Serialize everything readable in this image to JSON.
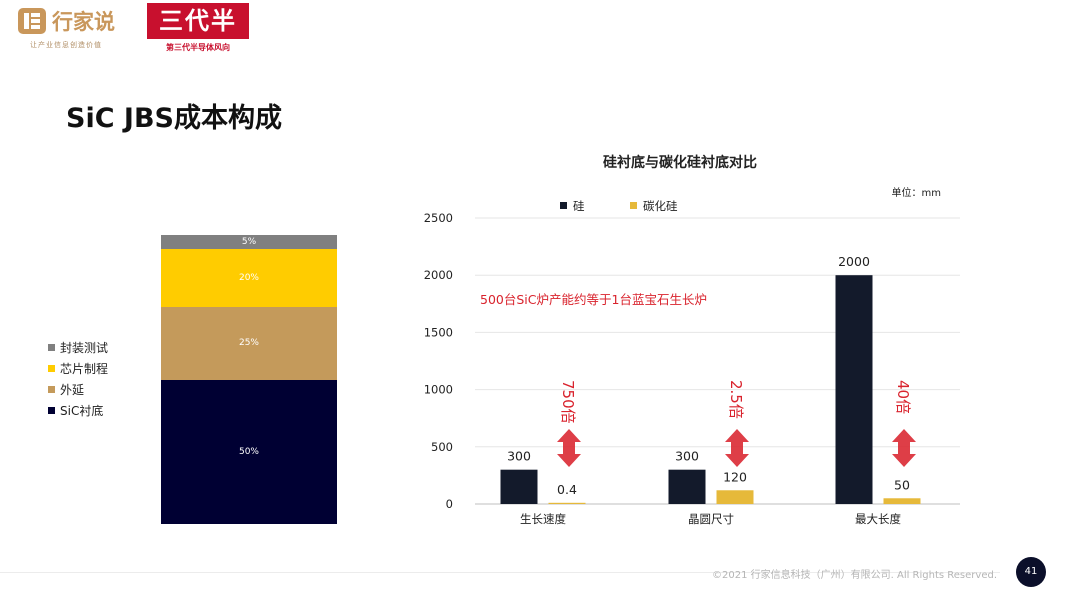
{
  "header": {
    "logo1_name": "行家说",
    "logo1_slogan": "让产业信息创造价值",
    "logo2_name": "三代半",
    "logo2_sub": "第三代半导体风向"
  },
  "title": "SiC JBS成本构成",
  "cost_breakdown": {
    "segments": [
      {
        "label": "封装测试",
        "value": 5,
        "text": "5%",
        "color": "#808080"
      },
      {
        "label": "芯片制程",
        "value": 20,
        "text": "20%",
        "color": "#ffcc00"
      },
      {
        "label": "外延",
        "value": 25,
        "text": "25%",
        "color": "#c49a5b"
      },
      {
        "label": "SiC衬底",
        "value": 50,
        "text": "50%",
        "color": "#000033"
      }
    ]
  },
  "chart_data": {
    "type": "bar",
    "title": "硅衬底与碳化硅衬底对比",
    "unit": "单位：mm",
    "categories": [
      "生长速度",
      "晶圆尺寸",
      "最大长度"
    ],
    "series": [
      {
        "name": "硅",
        "values": [
          300,
          300,
          2000
        ],
        "labels": [
          "300",
          "300",
          "2000"
        ],
        "color": "#131a2b"
      },
      {
        "name": "碳化硅",
        "values": [
          0.4,
          120,
          50
        ],
        "labels": [
          "0.4",
          "120",
          "50"
        ],
        "color": "#e6b93a"
      }
    ],
    "ylim": [
      0,
      2500
    ],
    "yticks": [
      "0",
      "500",
      "1000",
      "1500",
      "2000",
      "2500"
    ],
    "legend_position": "top",
    "grid": true,
    "annotation": "500台SiC炉产能约等于1台蓝宝石生长炉",
    "ratios": [
      "750倍",
      "2.5倍",
      "40倍"
    ]
  },
  "footer": {
    "copyright": "©2021 行家信息科技（广州）有限公司. All Rights Reserved.",
    "page_number": "41"
  }
}
